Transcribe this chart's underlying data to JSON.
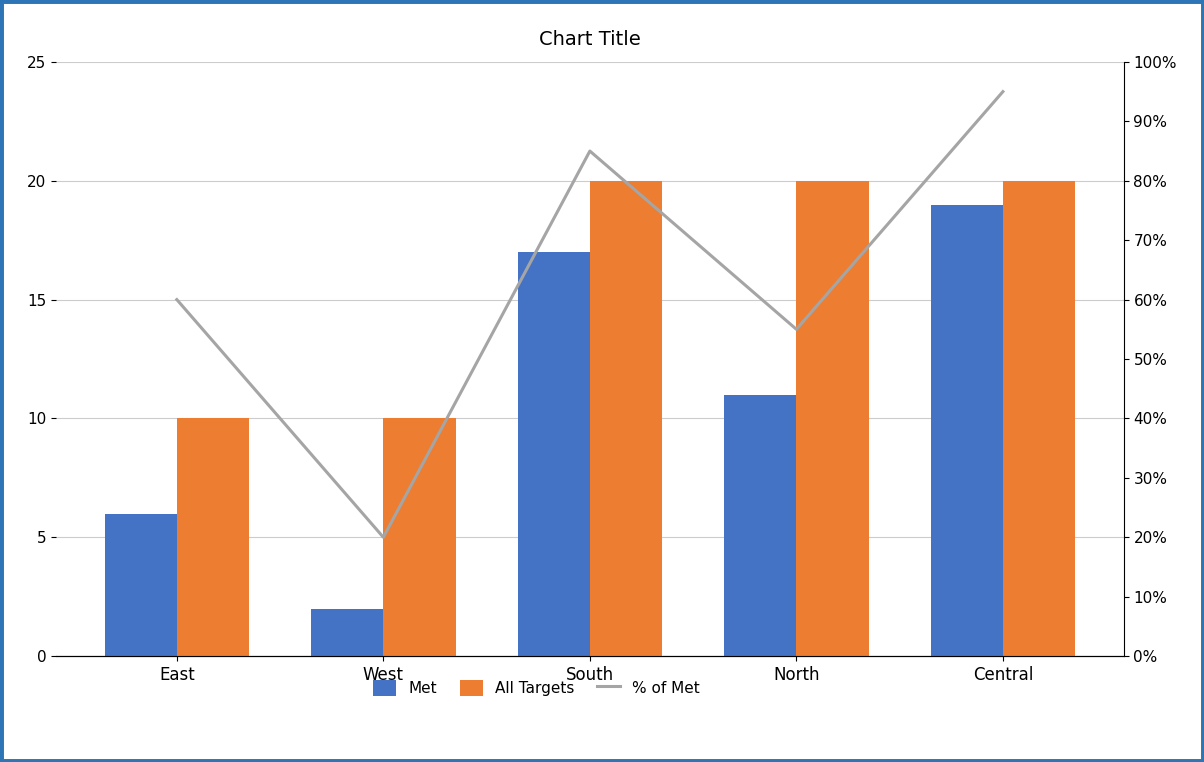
{
  "categories": [
    "East",
    "West",
    "South",
    "North",
    "Central"
  ],
  "met": [
    6,
    2,
    17,
    11,
    19
  ],
  "all_targets": [
    10,
    10,
    20,
    20,
    20
  ],
  "pct_of_met": [
    0.6,
    0.2,
    0.85,
    0.55,
    0.95
  ],
  "bar_color_met": "#4472C4",
  "bar_color_targets": "#ED7D31",
  "line_color": "#A5A5A5",
  "title": "Chart Title",
  "left_ylim": [
    0,
    25
  ],
  "right_ylim": [
    0,
    1.0
  ],
  "left_yticks": [
    0,
    5,
    10,
    15,
    20,
    25
  ],
  "right_yticks": [
    0.0,
    0.1,
    0.2,
    0.3,
    0.4,
    0.5,
    0.6,
    0.7,
    0.8,
    0.9,
    1.0
  ],
  "legend_labels": [
    "Met",
    "All Targets",
    "% of Met"
  ],
  "bar_width": 0.35,
  "background_color": "#FFFFFF",
  "border_color": "#2E75B6",
  "title_fontsize": 14
}
